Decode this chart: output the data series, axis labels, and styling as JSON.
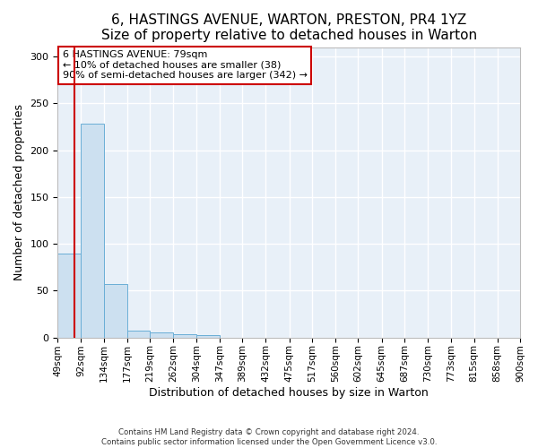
{
  "title": "6, HASTINGS AVENUE, WARTON, PRESTON, PR4 1YZ",
  "subtitle": "Size of property relative to detached houses in Warton",
  "xlabel": "Distribution of detached houses by size in Warton",
  "ylabel": "Number of detached properties",
  "bin_edges": [
    49,
    92,
    134,
    177,
    219,
    262,
    304,
    347,
    389,
    432,
    475,
    517,
    560,
    602,
    645,
    687,
    730,
    773,
    815,
    858,
    900
  ],
  "bar_heights": [
    90,
    228,
    57,
    7,
    5,
    4,
    3,
    0,
    0,
    0,
    0,
    0,
    0,
    0,
    0,
    0,
    0,
    0,
    0,
    0
  ],
  "bar_color": "#cce0f0",
  "bar_edge_color": "#6aaed6",
  "property_size": 79,
  "vline_color": "#cc0000",
  "annotation_line1": "6 HASTINGS AVENUE: 79sqm",
  "annotation_line2": "← 10% of detached houses are smaller (38)",
  "annotation_line3": "90% of semi-detached houses are larger (342) →",
  "annotation_box_color": "#cc0000",
  "ylim": [
    0,
    310
  ],
  "yticks": [
    0,
    50,
    100,
    150,
    200,
    250,
    300
  ],
  "background_color": "#e8f0f8",
  "grid_color": "#ffffff",
  "footer_line1": "Contains HM Land Registry data © Crown copyright and database right 2024.",
  "footer_line2": "Contains public sector information licensed under the Open Government Licence v3.0.",
  "title_fontsize": 11,
  "subtitle_fontsize": 10,
  "tick_label_fontsize": 7.5,
  "ylabel_fontsize": 9,
  "xlabel_fontsize": 9
}
